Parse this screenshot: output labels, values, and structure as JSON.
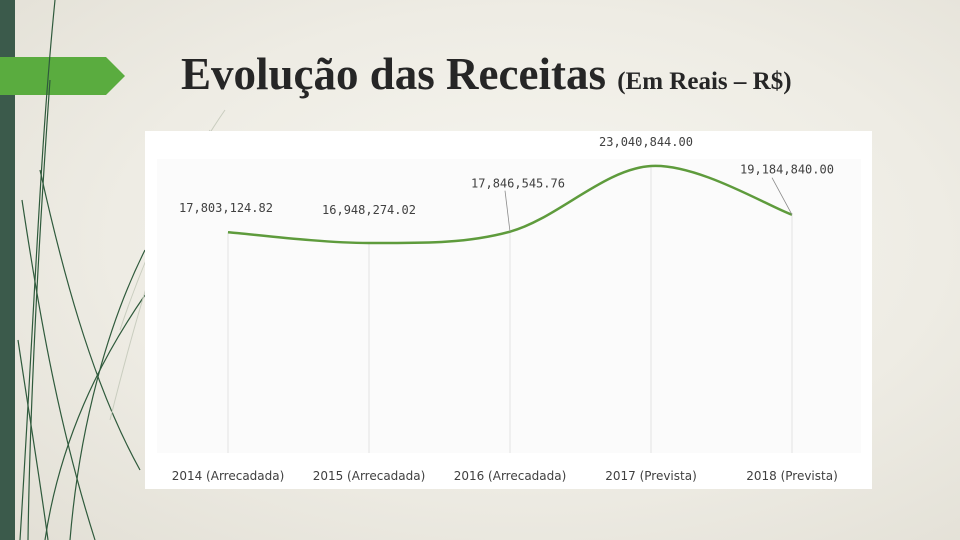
{
  "slide": {
    "title": "Evolução das Receitas",
    "title_suffix": "(Em Reais – R$)"
  },
  "colors": {
    "line": "#5e9b3c",
    "accent_green": "#5aac3f",
    "dark_bar": "#3b5a4b",
    "leader": "#8a8a8a",
    "grid": "#e3e3e3"
  },
  "chart_data": {
    "type": "line",
    "smooth": true,
    "title": "",
    "xlabel": "",
    "ylabel": "",
    "categories": [
      "2014 (Arrecadada)",
      "2015 (Arrecadada)",
      "2016 (Arrecadada)",
      "2017 (Prevista)",
      "2018 (Prevista)"
    ],
    "values": [
      17803124.82,
      16948274.02,
      17846545.76,
      23040844.0,
      19184840.0
    ],
    "data_labels": [
      "17,803,124.82",
      "16,948,274.02",
      "17,846,545.76",
      "23,040,844.00",
      "19,184,840.00"
    ],
    "ylim": [
      0,
      23040844
    ],
    "grid": "vertical",
    "legend": "none"
  }
}
